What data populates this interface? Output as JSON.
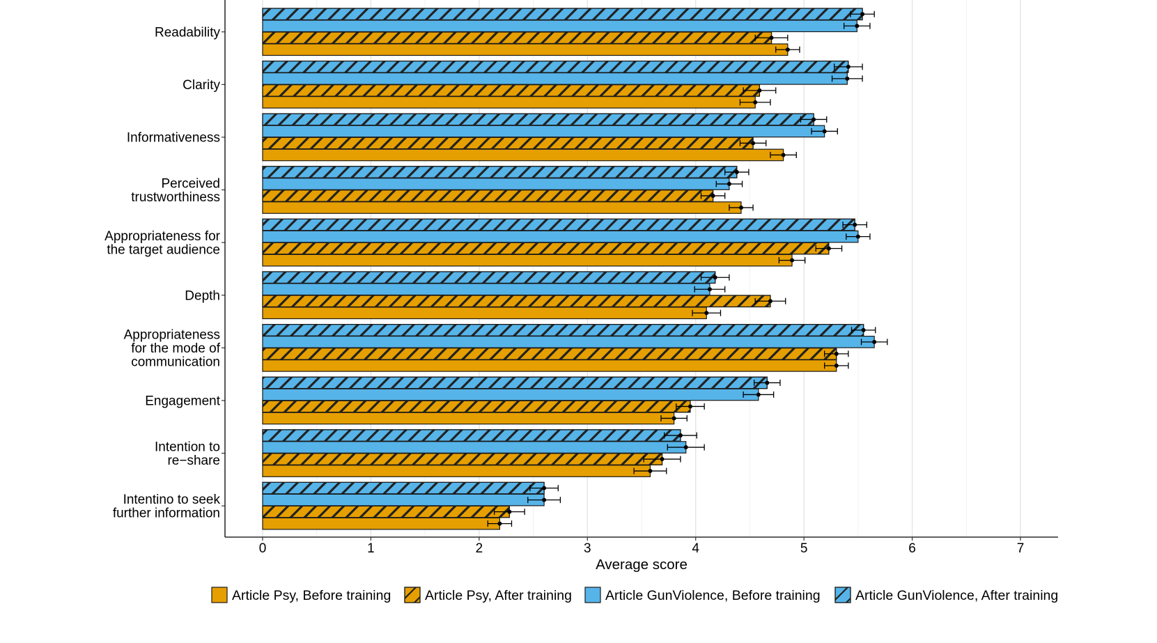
{
  "chart_data": {
    "type": "bar",
    "orientation": "horizontal",
    "title": "",
    "xlabel": "Average score",
    "ylabel": "",
    "xlim": [
      -0.35,
      7.35
    ],
    "xticks": [
      0,
      1,
      2,
      3,
      4,
      5,
      6,
      7
    ],
    "grid": true,
    "legend_position": "bottom",
    "categories": [
      {
        "lines": [
          "Readability"
        ]
      },
      {
        "lines": [
          "Clarity"
        ]
      },
      {
        "lines": [
          "Informativeness"
        ]
      },
      {
        "lines": [
          "Perceived",
          "trustworthiness"
        ]
      },
      {
        "lines": [
          "Appropriateness for",
          "the target audience"
        ]
      },
      {
        "lines": [
          "Depth"
        ]
      },
      {
        "lines": [
          "Appropriateness",
          "for the mode of",
          "communication"
        ]
      },
      {
        "lines": [
          "Engagement"
        ]
      },
      {
        "lines": [
          "Intention to",
          "re−share"
        ]
      },
      {
        "lines": [
          "Intentino to seek",
          "further information"
        ]
      }
    ],
    "series": [
      {
        "name": "Article GunViolence, After training",
        "color": "#56B4E9",
        "hatched": true,
        "values": [
          5.54,
          5.41,
          5.09,
          4.38,
          5.47,
          4.18,
          5.55,
          4.66,
          3.86,
          2.6
        ],
        "errors": [
          0.11,
          0.13,
          0.12,
          0.11,
          0.11,
          0.13,
          0.11,
          0.12,
          0.15,
          0.13
        ]
      },
      {
        "name": "Article GunViolence, Before training",
        "color": "#56B4E9",
        "hatched": false,
        "values": [
          5.49,
          5.4,
          5.19,
          4.31,
          5.5,
          4.13,
          5.65,
          4.58,
          3.91,
          2.6
        ],
        "errors": [
          0.12,
          0.14,
          0.12,
          0.12,
          0.11,
          0.14,
          0.12,
          0.14,
          0.17,
          0.15
        ]
      },
      {
        "name": "Article Psy, After training",
        "color": "#E69F00",
        "hatched": true,
        "values": [
          4.7,
          4.59,
          4.53,
          4.16,
          5.23,
          4.69,
          5.3,
          3.95,
          3.69,
          2.28
        ],
        "errors": [
          0.15,
          0.15,
          0.12,
          0.11,
          0.12,
          0.14,
          0.11,
          0.13,
          0.17,
          0.14
        ]
      },
      {
        "name": "Article Psy, Before training",
        "color": "#E69F00",
        "hatched": false,
        "values": [
          4.85,
          4.55,
          4.81,
          4.42,
          4.89,
          4.1,
          5.3,
          3.8,
          3.58,
          2.19
        ],
        "errors": [
          0.11,
          0.14,
          0.12,
          0.11,
          0.12,
          0.13,
          0.11,
          0.12,
          0.15,
          0.11
        ]
      }
    ],
    "legend": [
      {
        "label": "Article Psy, Before training",
        "color": "#E69F00",
        "hatched": false
      },
      {
        "label": "Article Psy, After training",
        "color": "#E69F00",
        "hatched": true
      },
      {
        "label": "Article GunViolence, Before training",
        "color": "#56B4E9",
        "hatched": false
      },
      {
        "label": "Article GunViolence, After training",
        "color": "#56B4E9",
        "hatched": true
      }
    ]
  }
}
